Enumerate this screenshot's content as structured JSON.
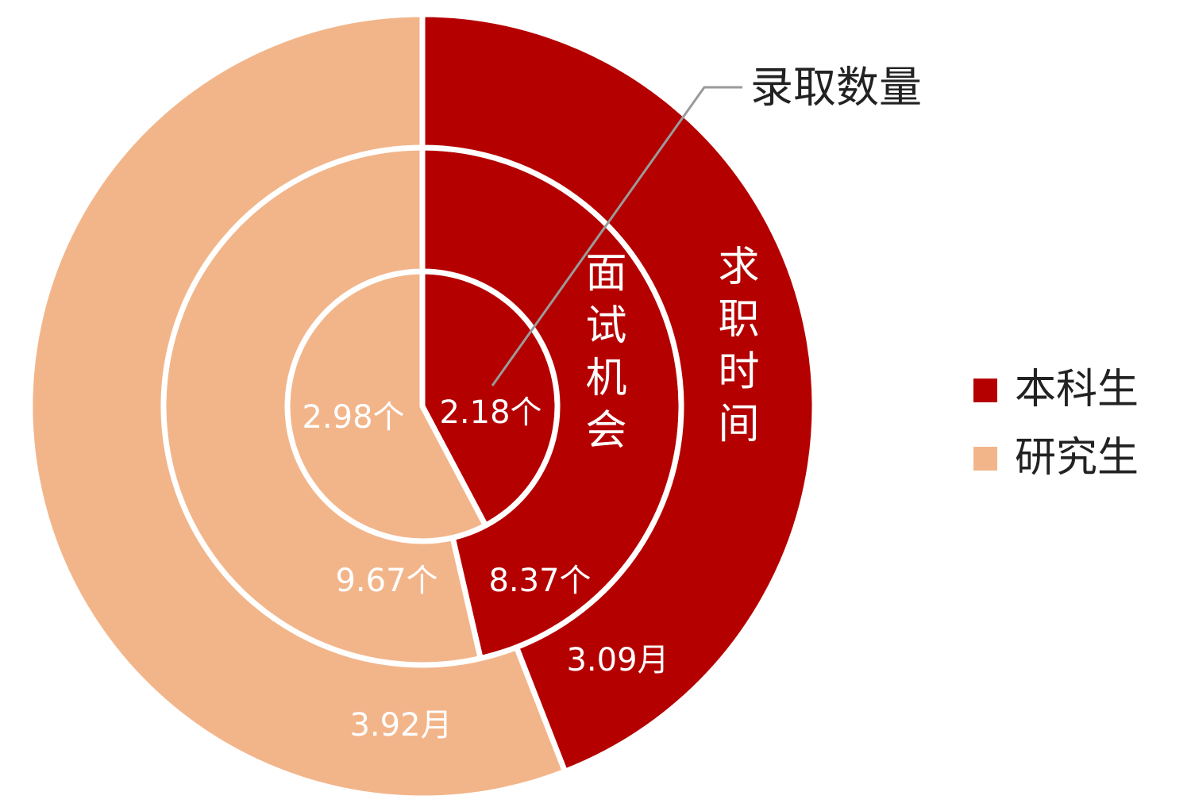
{
  "chart_data": {
    "type": "pie",
    "categories": [
      "本科生",
      "研究生"
    ],
    "colors": [
      "#b50000",
      "#f2b58a"
    ],
    "legend": "right",
    "rings": [
      {
        "name": "录取数量",
        "values": [
          2.18,
          2.98
        ],
        "value_labels": [
          "2.18个",
          "2.98个"
        ]
      },
      {
        "name": "面试机会",
        "values": [
          8.37,
          9.67
        ],
        "value_labels": [
          "8.37个",
          "9.67个"
        ]
      },
      {
        "name": "求职时间",
        "values": [
          3.09,
          3.92
        ],
        "value_labels": [
          "3.09月",
          "3.92月"
        ]
      }
    ]
  }
}
